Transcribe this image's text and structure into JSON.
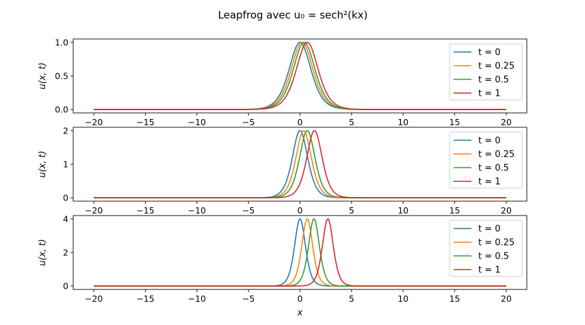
{
  "figure": {
    "title": "Leapfrog avec u₀ = sech²(kx)"
  },
  "colors": {
    "t0": "#1f77b4",
    "t025": "#ff7f0e",
    "t05": "#2ca02c",
    "t1": "#d62728"
  },
  "chart_data": [
    {
      "type": "line",
      "title": "",
      "xlabel": "",
      "ylabel": "u(x, t)",
      "xlim": [
        -22,
        22
      ],
      "ylim": [
        -0.05,
        1.05
      ],
      "xticks": [
        -20,
        -15,
        -10,
        -5,
        0,
        5,
        10,
        15,
        20
      ],
      "xtick_labels": [
        "−20",
        "−15",
        "−10",
        "−5",
        "0",
        "5",
        "10",
        "15",
        "20"
      ],
      "yticks": [
        0,
        0.5,
        1.0
      ],
      "ytick_labels": [
        "0.0",
        "0.5",
        "1.0"
      ],
      "legend": "top-right",
      "grid": false,
      "amplitude": 1.0,
      "series": [
        {
          "name": "t = 0",
          "peak_x": 0.0,
          "color": "#1f77b4"
        },
        {
          "name": "t = 0.25",
          "peak_x": 0.2,
          "color": "#ff7f0e"
        },
        {
          "name": "t = 0.5",
          "peak_x": 0.4,
          "color": "#2ca02c"
        },
        {
          "name": "t = 1",
          "peak_x": 0.7,
          "color": "#d62728"
        }
      ]
    },
    {
      "type": "line",
      "title": "",
      "xlabel": "",
      "ylabel": "u(x, t)",
      "xlim": [
        -22,
        22
      ],
      "ylim": [
        -0.1,
        2.1
      ],
      "xticks": [
        -20,
        -15,
        -10,
        -5,
        0,
        5,
        10,
        15,
        20
      ],
      "xtick_labels": [
        "−20",
        "−15",
        "−10",
        "−5",
        "0",
        "5",
        "10",
        "15",
        "20"
      ],
      "yticks": [
        0,
        1,
        2
      ],
      "ytick_labels": [
        "0",
        "1",
        "2"
      ],
      "legend": "top-right",
      "grid": false,
      "amplitude": 2.0,
      "series": [
        {
          "name": "t = 0",
          "peak_x": 0.0,
          "color": "#1f77b4"
        },
        {
          "name": "t = 0.25",
          "peak_x": 0.35,
          "color": "#ff7f0e"
        },
        {
          "name": "t = 0.5",
          "peak_x": 0.7,
          "color": "#2ca02c"
        },
        {
          "name": "t = 1",
          "peak_x": 1.4,
          "color": "#d62728"
        }
      ]
    },
    {
      "type": "line",
      "title": "",
      "xlabel": "x",
      "ylabel": "u(x, t)",
      "xlim": [
        -22,
        22
      ],
      "ylim": [
        -0.2,
        4.2
      ],
      "xticks": [
        -20,
        -15,
        -10,
        -5,
        0,
        5,
        10,
        15,
        20
      ],
      "xtick_labels": [
        "−20",
        "−15",
        "−10",
        "−5",
        "0",
        "5",
        "10",
        "15",
        "20"
      ],
      "yticks": [
        0,
        2,
        4
      ],
      "ytick_labels": [
        "0",
        "2",
        "4"
      ],
      "legend": "top-right",
      "grid": false,
      "amplitude": 4.0,
      "series": [
        {
          "name": "t = 0",
          "peak_x": 0.0,
          "color": "#1f77b4"
        },
        {
          "name": "t = 0.25",
          "peak_x": 0.7,
          "color": "#ff7f0e"
        },
        {
          "name": "t = 0.5",
          "peak_x": 1.35,
          "color": "#2ca02c"
        },
        {
          "name": "t = 1",
          "peak_x": 2.7,
          "color": "#d62728"
        }
      ]
    }
  ]
}
